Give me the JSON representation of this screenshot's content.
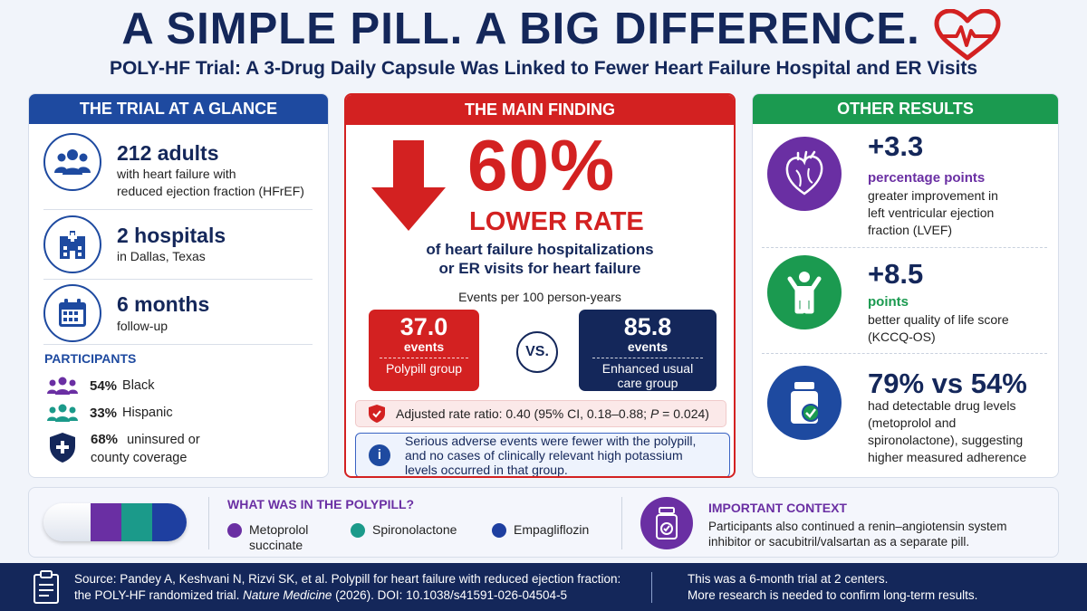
{
  "header": {
    "title": "A SIMPLE PILL. A BIG DIFFERENCE.",
    "subtitle": "POLY-HF Trial: A 3-Drug Daily Capsule Was Linked to Fewer Heart Failure Hospital and ER Visits"
  },
  "glance": {
    "heading": "THE TRIAL AT A GLANCE",
    "stats": [
      {
        "value": "212 adults",
        "desc1": "with heart failure with",
        "desc2": "reduced ejection fraction (HFrEF)",
        "icon": "people-icon"
      },
      {
        "value": "2 hospitals",
        "desc1": "in Dallas, Texas",
        "desc2": "",
        "icon": "hospital-icon"
      },
      {
        "value": "6 months",
        "desc1": "follow-up",
        "desc2": "",
        "icon": "calendar-icon"
      }
    ],
    "participants_title": "PARTICIPANTS",
    "participants": [
      {
        "pct": "54%",
        "label": "Black",
        "color": "#6a2fa3"
      },
      {
        "pct": "33%",
        "label": "Hispanic",
        "color": "#1b9a8a"
      },
      {
        "pct": "68%",
        "label": "uninsured or",
        "label2": "county coverage",
        "color": "#14275a"
      }
    ]
  },
  "finding": {
    "heading": "THE MAIN FINDING",
    "pct": "60%",
    "lower_rate": "LOWER RATE",
    "desc1": "of heart failure hospitalizations",
    "desc2": "or ER visits for heart failure",
    "events_label": "Events per 100 person-years",
    "polypill": {
      "value": "37.0",
      "unit": "events",
      "group": "Polypill group"
    },
    "vs": "VS.",
    "usual": {
      "value": "85.8",
      "unit": "events",
      "group1": "Enhanced usual",
      "group2": "care group"
    },
    "ratio_pre": "Adjusted rate ratio: 0.40 (95% CI, 0.18–0.88; ",
    "ratio_p": "P",
    "ratio_post": " = 0.024)",
    "note1": "Serious adverse events were fewer with the polypill,",
    "note2": "and no cases of clinically relevant high potassium",
    "note3": "levels occurred in that group."
  },
  "other": {
    "heading": "OTHER RESULTS",
    "results": [
      {
        "value": "+3.3",
        "unit": "percentage points",
        "unit_color": "#6a2fa3",
        "desc1": "greater improvement in",
        "desc2": "left ventricular ejection",
        "desc3": "fraction (LVEF)",
        "icon": "heart-organ-icon",
        "color": "#6a2fa3"
      },
      {
        "value": "+8.5",
        "unit": "points",
        "unit_color": "#1b9a50",
        "desc1": "better quality of life score",
        "desc2": "(KCCQ-OS)",
        "icon": "person-cheer-icon",
        "color": "#1b9a50"
      },
      {
        "value": "79% vs 54%",
        "desc1": "had detectable drug levels",
        "desc2": "(metoprolol and",
        "desc3": "spironolactone), suggesting",
        "desc4": "higher measured adherence",
        "icon": "pill-bottle-icon",
        "color": "#1e4aa0"
      }
    ]
  },
  "polypill": {
    "title": "WHAT WAS IN THE POLYPILL?",
    "ingredients": [
      {
        "name1": "Metoprolol",
        "name2": "succinate",
        "color": "#6a2fa3"
      },
      {
        "name1": "Spironolactone",
        "name2": "",
        "color": "#1b9a8a"
      },
      {
        "name1": "Empagliflozin",
        "name2": "",
        "color": "#1e3fa0"
      }
    ]
  },
  "context": {
    "title": "IMPORTANT CONTEXT",
    "text1": "Participants also continued a renin–angiotensin system",
    "text2": "inhibitor or sacubitril/valsartan as a separate pill."
  },
  "footer": {
    "source1": "Source: Pandey A, Keshvani N, Rizvi SK, et al. Polypill for heart failure with reduced ejection fraction:",
    "source2_pre": "the POLY-HF randomized trial. ",
    "source2_journal": "Nature Medicine",
    "source2_post": " (2026). DOI: 10.1038/s41591-026-04504-5",
    "note1": "This was a 6-month trial at 2 centers.",
    "note2": "More research is needed to confirm long-term results."
  }
}
